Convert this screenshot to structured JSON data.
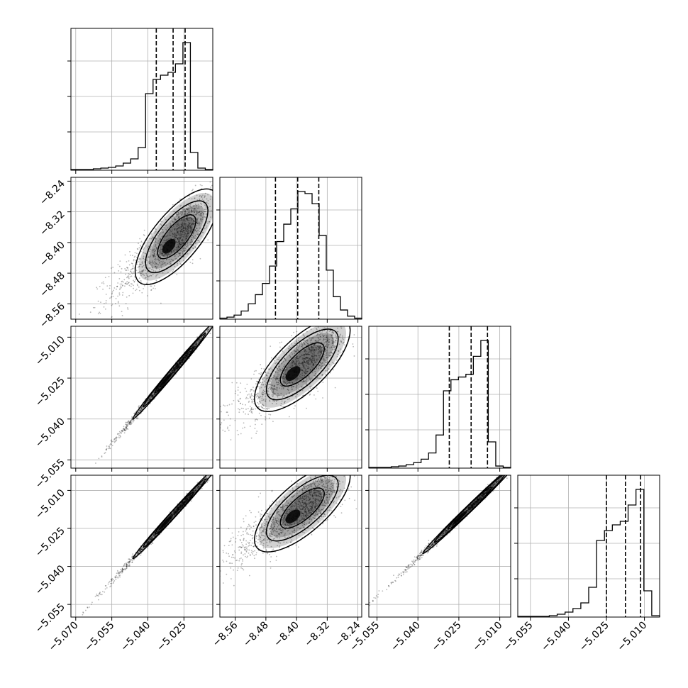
{
  "chart_data": {
    "type": "corner",
    "colors": {
      "hist": "#000000",
      "grid": "#b0b0b0",
      "scatter": "#000000",
      "contour": "#000000",
      "frame": "#000000"
    },
    "grid": true,
    "quantiles_shown": [
      0.16,
      0.5,
      0.84
    ],
    "parameters": [
      {
        "range": [
          -5.072,
          -5.013
        ],
        "ticks": [
          -5.07,
          -5.055,
          -5.04,
          -5.025
        ],
        "tick_labels": [
          "−5.070",
          "−5.055",
          "−5.040",
          "−5.025"
        ],
        "quantiles": [
          -5.0365,
          -5.0295,
          -5.0245
        ],
        "hist": [
          1,
          1,
          1,
          2,
          3,
          4,
          6,
          10,
          16,
          32,
          108,
          128,
          134,
          138,
          150,
          180,
          25,
          3,
          1
        ]
      },
      {
        "range": [
          -8.6,
          -8.23
        ],
        "ticks": [
          -8.56,
          -8.48,
          -8.4,
          -8.32,
          -8.24
        ],
        "tick_labels": [
          "−8.56",
          "−8.48",
          "−8.40",
          "−8.32",
          "−8.24"
        ],
        "quantiles": [
          -8.455,
          -8.397,
          -8.342
        ],
        "hist": [
          1,
          2,
          4,
          8,
          15,
          24,
          35,
          52,
          76,
          93,
          108,
          125,
          123,
          113,
          82,
          48,
          22,
          9,
          3,
          1
        ]
      },
      {
        "range": [
          -5.058,
          -5.006
        ],
        "ticks": [
          -5.055,
          -5.04,
          -5.025,
          -5.01
        ],
        "tick_labels": [
          "−5.055",
          "−5.040",
          "−5.025",
          "−5.010"
        ],
        "quantiles": [
          -5.0285,
          -5.0205,
          -5.0145
        ],
        "hist": [
          1,
          1,
          1,
          2,
          3,
          5,
          8,
          13,
          22,
          48,
          112,
          128,
          132,
          136,
          162,
          185,
          38,
          3,
          1
        ]
      },
      {
        "range": [
          -5.06,
          -5.004
        ],
        "ticks": [
          -5.055,
          -5.04,
          -5.025,
          -5.01
        ],
        "tick_labels": [
          "−5.055",
          "−5.040",
          "−5.025",
          "−5.010"
        ],
        "quantiles": [
          -5.025,
          -5.0175,
          -5.0115
        ],
        "hist": [
          1,
          1,
          1,
          1,
          2,
          4,
          7,
          12,
          20,
          42,
          108,
          122,
          130,
          135,
          158,
          180,
          37,
          2
        ]
      }
    ],
    "pairs": [
      {
        "row": 1,
        "col": 0,
        "mean": [
          -5.028,
          -8.385
        ],
        "sd": [
          0.0072,
          0.052
        ],
        "rho": 0.72,
        "skew": 0.8
      },
      {
        "row": 2,
        "col": 0,
        "mean": [
          -5.029,
          -5.022
        ],
        "sd": [
          0.0072,
          0.0075
        ],
        "rho": 0.995,
        "skew": 0.8
      },
      {
        "row": 2,
        "col": 1,
        "mean": [
          -8.385,
          -5.02
        ],
        "sd": [
          0.052,
          0.0072
        ],
        "rho": 0.72,
        "skew": 0.8
      },
      {
        "row": 3,
        "col": 0,
        "mean": [
          -5.029,
          -5.019
        ],
        "sd": [
          0.0072,
          0.0075
        ],
        "rho": 0.995,
        "skew": 0.8
      },
      {
        "row": 3,
        "col": 1,
        "mean": [
          -8.385,
          -5.017
        ],
        "sd": [
          0.052,
          0.0072
        ],
        "rho": 0.72,
        "skew": 0.8
      },
      {
        "row": 3,
        "col": 2,
        "mean": [
          -5.021,
          -5.017
        ],
        "sd": [
          0.0072,
          0.0075
        ],
        "rho": 0.995,
        "skew": 0.8
      }
    ]
  }
}
